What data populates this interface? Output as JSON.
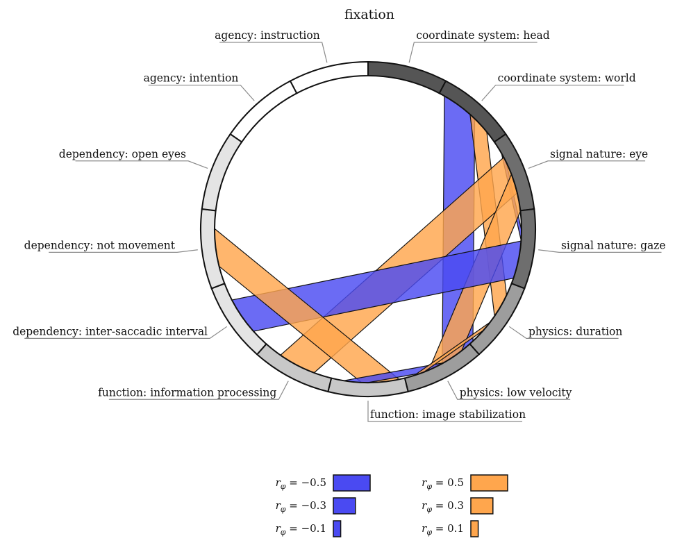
{
  "title": "fixation",
  "segments": [
    {
      "label": "coordinate system: head",
      "fill": "#555555"
    },
    {
      "label": "coordinate system: world",
      "fill": "#555555"
    },
    {
      "label": "signal nature: eye",
      "fill": "#6e6e6e"
    },
    {
      "label": "signal nature: gaze",
      "fill": "#6e6e6e"
    },
    {
      "label": "physics: duration",
      "fill": "#9d9d9d"
    },
    {
      "label": "physics: low velocity",
      "fill": "#9d9d9d"
    },
    {
      "label": "function: image stabilization",
      "fill": "#c8c8c8"
    },
    {
      "label": "function: information processing",
      "fill": "#c8c8c8"
    },
    {
      "label": "dependency: inter-saccadic interval",
      "fill": "#e4e4e4"
    },
    {
      "label": "dependency: not movement",
      "fill": "#e4e4e4"
    },
    {
      "label": "dependency: open eyes",
      "fill": "#e4e4e4"
    },
    {
      "label": "agency: intention",
      "fill": "#ffffff"
    },
    {
      "label": "agency: instruction",
      "fill": "#ffffff"
    }
  ],
  "colors": {
    "negative": "#4a4af2",
    "positive": "#ffa64d"
  },
  "links": [
    {
      "from": "coordinate system: world",
      "to": "physics: low velocity",
      "r": -0.5
    },
    {
      "from": "coordinate system: world",
      "to": "physics: duration",
      "r": 0.3
    },
    {
      "from": "signal nature: eye",
      "to": "signal nature: gaze",
      "r": -0.1
    },
    {
      "from": "signal nature: eye",
      "to": "function: information processing",
      "r": 0.5
    },
    {
      "from": "signal nature: eye",
      "to": "physics: low velocity",
      "r": 0.5
    },
    {
      "from": "signal nature: gaze",
      "to": "dependency: inter-saccadic interval",
      "r": -0.5
    },
    {
      "from": "dependency: not movement",
      "to": "function: image stabilization",
      "r": 0.5
    },
    {
      "from": "function: image stabilization",
      "to": "physics: low velocity",
      "r": -0.3
    },
    {
      "from": "physics: duration",
      "to": "physics: low velocity",
      "r": 0.1
    }
  ],
  "legend": [
    {
      "symbol": "r",
      "subscript": "φ",
      "text": " = −0.5",
      "value": -0.5
    },
    {
      "symbol": "r",
      "subscript": "φ",
      "text": " = −0.3",
      "value": -0.3
    },
    {
      "symbol": "r",
      "subscript": "φ",
      "text": " = −0.1",
      "value": -0.1
    },
    {
      "symbol": "r",
      "subscript": "φ",
      "text": " = 0.5",
      "value": 0.5
    },
    {
      "symbol": "r",
      "subscript": "φ",
      "text": " = 0.3",
      "value": 0.3
    },
    {
      "symbol": "r",
      "subscript": "φ",
      "text": " = 0.1",
      "value": 0.1
    }
  ]
}
